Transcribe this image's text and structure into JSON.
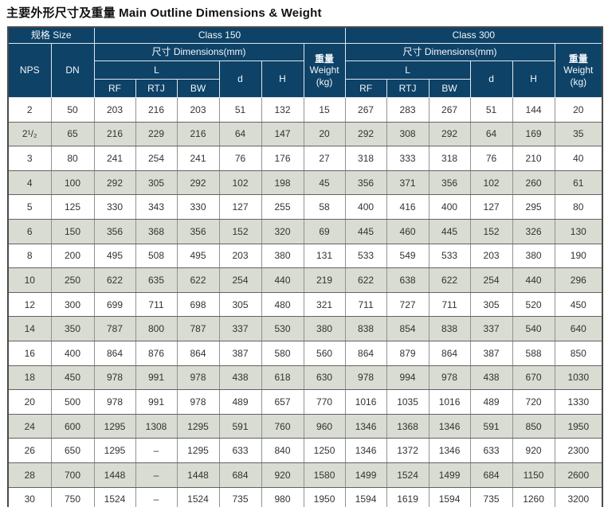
{
  "title": "主要外形尺寸及重量 Main Outline Dimensions & Weight",
  "colors": {
    "header_bg": "#0e4267",
    "header_line": "#dfe9f0",
    "row_alt_bg": "#d9dcd2",
    "outer_border": "#4a4a4a",
    "cell_line_v": "#909391",
    "cell_line_h": "#606362"
  },
  "table": {
    "header": {
      "size_group": "规格 Size",
      "class150": "Class 150",
      "class300": "Class 300",
      "dimensions": "尺寸 Dimensions(mm)",
      "weight_cn": "重量",
      "weight_en": "Weight",
      "weight_unit": "(kg)",
      "nps": "NPS",
      "dn": "DN",
      "l": "L",
      "d": "d",
      "h": "H",
      "rf": "RF",
      "rtj": "RTJ",
      "bw": "BW"
    },
    "rows": [
      [
        "2",
        "50",
        "203",
        "216",
        "203",
        "51",
        "132",
        "15",
        "267",
        "283",
        "267",
        "51",
        "144",
        "20"
      ],
      [
        "2¹/₂",
        "65",
        "216",
        "229",
        "216",
        "64",
        "147",
        "20",
        "292",
        "308",
        "292",
        "64",
        "169",
        "35"
      ],
      [
        "3",
        "80",
        "241",
        "254",
        "241",
        "76",
        "176",
        "27",
        "318",
        "333",
        "318",
        "76",
        "210",
        "40"
      ],
      [
        "4",
        "100",
        "292",
        "305",
        "292",
        "102",
        "198",
        "45",
        "356",
        "371",
        "356",
        "102",
        "260",
        "61"
      ],
      [
        "5",
        "125",
        "330",
        "343",
        "330",
        "127",
        "255",
        "58",
        "400",
        "416",
        "400",
        "127",
        "295",
        "80"
      ],
      [
        "6",
        "150",
        "356",
        "368",
        "356",
        "152",
        "320",
        "69",
        "445",
        "460",
        "445",
        "152",
        "326",
        "130"
      ],
      [
        "8",
        "200",
        "495",
        "508",
        "495",
        "203",
        "380",
        "131",
        "533",
        "549",
        "533",
        "203",
        "380",
        "190"
      ],
      [
        "10",
        "250",
        "622",
        "635",
        "622",
        "254",
        "440",
        "219",
        "622",
        "638",
        "622",
        "254",
        "440",
        "296"
      ],
      [
        "12",
        "300",
        "699",
        "711",
        "698",
        "305",
        "480",
        "321",
        "711",
        "727",
        "711",
        "305",
        "520",
        "450"
      ],
      [
        "14",
        "350",
        "787",
        "800",
        "787",
        "337",
        "530",
        "380",
        "838",
        "854",
        "838",
        "337",
        "540",
        "640"
      ],
      [
        "16",
        "400",
        "864",
        "876",
        "864",
        "387",
        "580",
        "560",
        "864",
        "879",
        "864",
        "387",
        "588",
        "850"
      ],
      [
        "18",
        "450",
        "978",
        "991",
        "978",
        "438",
        "618",
        "630",
        "978",
        "994",
        "978",
        "438",
        "670",
        "1030"
      ],
      [
        "20",
        "500",
        "978",
        "991",
        "978",
        "489",
        "657",
        "770",
        "1016",
        "1035",
        "1016",
        "489",
        "720",
        "1330"
      ],
      [
        "24",
        "600",
        "1295",
        "1308",
        "1295",
        "591",
        "760",
        "960",
        "1346",
        "1368",
        "1346",
        "591",
        "850",
        "1950"
      ],
      [
        "26",
        "650",
        "1295",
        "–",
        "1295",
        "633",
        "840",
        "1250",
        "1346",
        "1372",
        "1346",
        "633",
        "920",
        "2300"
      ],
      [
        "28",
        "700",
        "1448",
        "–",
        "1448",
        "684",
        "920",
        "1580",
        "1499",
        "1524",
        "1499",
        "684",
        "1150",
        "2600"
      ],
      [
        "30",
        "750",
        "1524",
        "–",
        "1524",
        "735",
        "980",
        "1950",
        "1594",
        "1619",
        "1594",
        "735",
        "1260",
        "3200"
      ]
    ]
  }
}
